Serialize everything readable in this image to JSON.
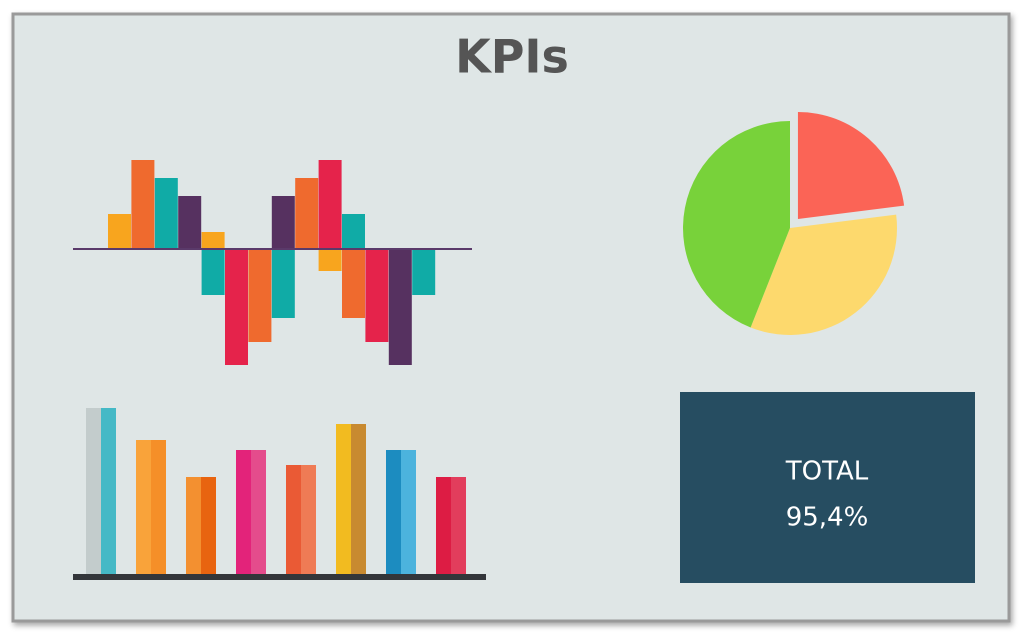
{
  "title": "KPIs",
  "chart_data": [
    {
      "type": "diverging-bar",
      "ylim": [
        -120,
        100
      ],
      "baseline_color": "#5a3a6a",
      "series": [
        {
          "values": [
            35,
            89,
            71,
            53,
            17,
            null,
            null,
            53,
            71,
            89,
            35,
            null,
            null,
            null
          ],
          "colors": [
            "#f8a51e",
            "#ef6a2e",
            "#10aba6",
            "#563160",
            "#f8a51e",
            null,
            null,
            "#563160",
            "#ef6a2e",
            "#e5234b",
            "#10aba6",
            null,
            null,
            null
          ]
        },
        {
          "values": [
            null,
            null,
            null,
            null,
            -46,
            -116,
            -93,
            -69,
            null,
            -22,
            -69,
            -93,
            -116,
            -46
          ],
          "colors": [
            null,
            null,
            null,
            null,
            "#10aba6",
            "#e5234b",
            "#ef6a2e",
            "#10aba6",
            null,
            "#f8a51e",
            "#ef6a2e",
            "#e5234b",
            "#563160",
            "#10aba6"
          ]
        }
      ]
    },
    {
      "type": "twotone-bar",
      "ylim": [
        0,
        180
      ],
      "axis_color": "#33363a",
      "values": [
        169,
        137,
        100,
        127,
        112,
        153,
        127,
        100
      ],
      "colors": [
        [
          "#c3cccc",
          "#45b9c6"
        ],
        [
          "#f9a33a",
          "#f58f28"
        ],
        [
          "#f39030",
          "#e86410"
        ],
        [
          "#e3237a",
          "#e44c8c"
        ],
        [
          "#ea5a35",
          "#ef7b55"
        ],
        [
          "#f2bb20",
          "#c88a30"
        ],
        [
          "#1c8cc0",
          "#4cb3dd"
        ],
        [
          "#dd1c44",
          "#e23d5c"
        ]
      ]
    },
    {
      "type": "pie",
      "values": [
        23,
        33,
        44
      ],
      "colors": [
        "#fb6456",
        "#fdd96d",
        "#78d23a"
      ],
      "explode": [
        true,
        false,
        false
      ]
    }
  ],
  "kpi": {
    "label": "TOTAL",
    "value": "95,4%"
  }
}
